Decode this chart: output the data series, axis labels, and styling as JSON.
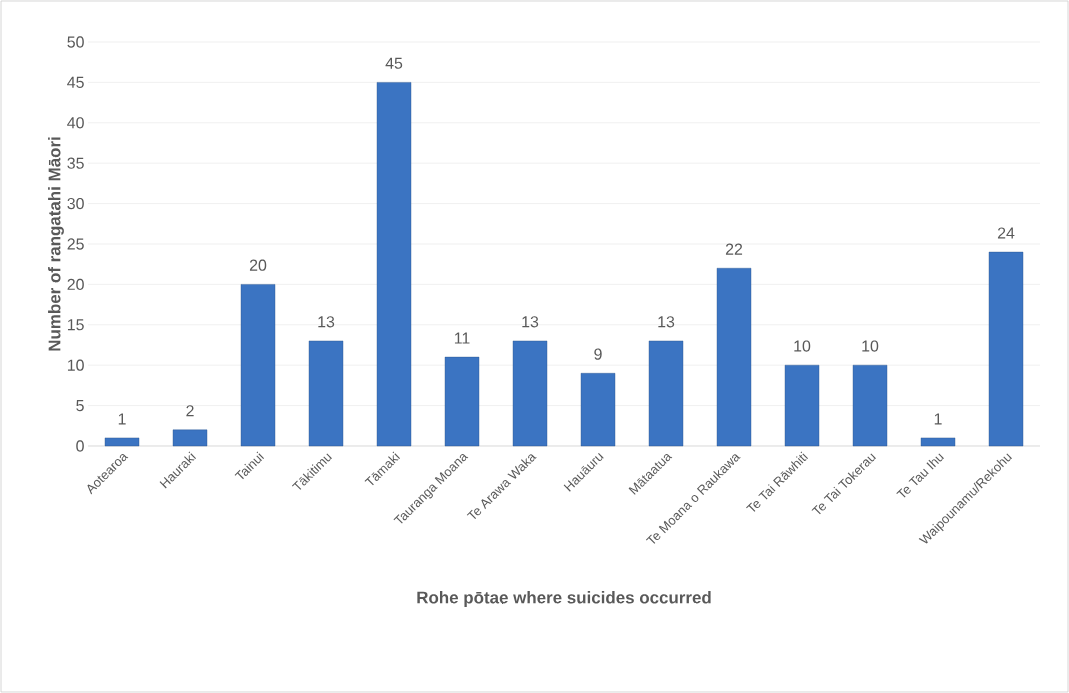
{
  "chart_data": {
    "type": "bar",
    "xlabel": "Rohe pōtae where suicides occurred",
    "ylabel": "Number of rangatahi Māori",
    "categories": [
      "Aotearoa",
      "Hauraki",
      "Tainui",
      "Tākitimu",
      "Tāmaki",
      "Tauranga Moana",
      "Te Arawa Waka",
      "Hauāuru",
      "Mātaatua",
      "Te Moana o Raukawa",
      "Te Tai Rāwhiti",
      "Te Tai Tokerau",
      "Te Tau Ihu",
      "Waipounamu/Rekohu"
    ],
    "values": [
      1,
      2,
      20,
      13,
      45,
      11,
      13,
      9,
      13,
      22,
      10,
      10,
      1,
      24
    ],
    "color": "#3b74c2",
    "ylim": [
      0,
      50
    ],
    "yticks": [
      0,
      5,
      10,
      15,
      20,
      25,
      30,
      35,
      40,
      45,
      50
    ],
    "grid": "y",
    "data_labels": true
  }
}
